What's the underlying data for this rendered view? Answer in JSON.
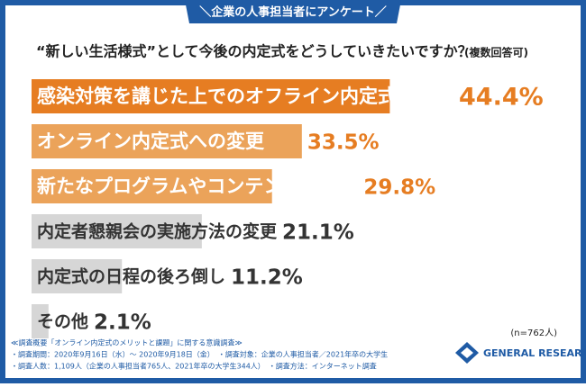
{
  "chart_data": {
    "type": "bar",
    "title": "＼企業の人事担当者にアンケート／",
    "subtitle": "“新しい生活様式”として今後の内定式をどうしていきたいですか？",
    "subtitle_note": "(複数回答可)",
    "categories": [
      "感染対策を講じた上でのオフライン内定式の維持",
      "オンライン内定式への変更",
      "新たなプログラムやコンテンツの追加",
      "内定者懇親会の実施方法の変更",
      "内定式の日程の後ろ倒し",
      "その他"
    ],
    "values": [
      44.4,
      33.5,
      29.8,
      21.1,
      11.2,
      2.1
    ],
    "value_labels": [
      "44.4%",
      "33.5%",
      "29.8%",
      "21.1%",
      "11.2%",
      "2.1%"
    ],
    "colors": [
      "#e67d22",
      "#eba35a",
      "#eba35a",
      "#d6d6d6",
      "#d6d6d6",
      "#d6d6d6"
    ],
    "value_label_colors": [
      "#e67d22",
      "#e67d22",
      "#e67d22",
      "#333333",
      "#333333",
      "#333333"
    ],
    "sample": "(n=762人)"
  },
  "footer": {
    "lines": [
      "≪調査概要「オンライン内定式のメリットと課題」に関する意識調査≫",
      "・調査期間：2020年9月16日（水）～ 2020年9月18日（金）　・調査対象：企業の人事担当者／2021年卒の大学生",
      "・調査人数：1,109人（企業の人事担当者765人、2021年卒の大学生344人）　・調査方法：インターネット調査"
    ],
    "logo": "GENERAL RESEARCH"
  }
}
